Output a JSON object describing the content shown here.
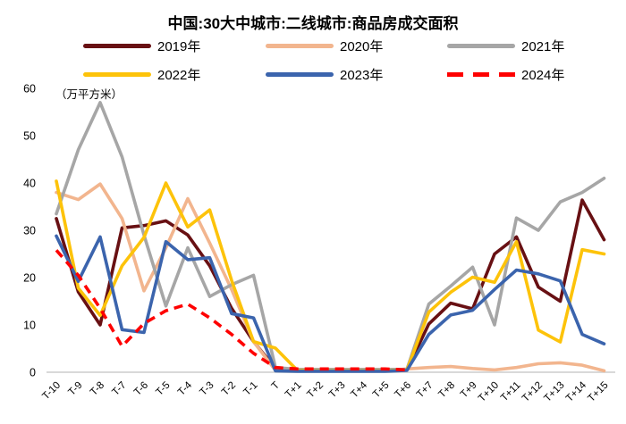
{
  "title": "中国:30大中城市:二线城市:商品房成交面积",
  "y_axis": {
    "unit_label": "（万平方米）",
    "ticks": [
      0,
      10,
      20,
      30,
      40,
      50,
      60
    ],
    "axis_line_color": "#d9d9d9"
  },
  "legend": {
    "position": "top",
    "rows": 2,
    "columns": 3
  },
  "chart_data": {
    "type": "line",
    "title": "中国:30大中城市:二线城市:商品房成交面积",
    "ylabel": "（万平方米）",
    "ylim": [
      0,
      60
    ],
    "grid": false,
    "legend_position": "top",
    "categories": [
      "T-10",
      "T-9",
      "T-8",
      "T-7",
      "T-6",
      "T-5",
      "T-4",
      "T-3",
      "T-2",
      "T-1",
      "T",
      "T+1",
      "T+2",
      "T+3",
      "T+4",
      "T+5",
      "T+6",
      "T+7",
      "T+8",
      "T+9",
      "T+10",
      "T+11",
      "T+12",
      "T+13",
      "T+14",
      "T+15"
    ],
    "series": [
      {
        "name": "2019年",
        "color": "#681013",
        "dashed": false,
        "values": [
          32.5,
          17,
          10,
          30.5,
          31,
          32,
          29,
          22.5,
          13.5,
          6.5,
          0.8,
          0.4,
          0.4,
          0.4,
          0.4,
          0.4,
          0.5,
          10.2,
          14.6,
          13.4,
          25,
          28.6,
          18,
          15,
          36.4,
          28
        ]
      },
      {
        "name": "2020年",
        "color": "#f2b58e",
        "dashed": false,
        "values": [
          38,
          36.5,
          39.8,
          32.5,
          17.2,
          26.3,
          36.7,
          27.3,
          17.5,
          6.5,
          0.4,
          0.3,
          0.3,
          0.3,
          0.3,
          0.3,
          0.7,
          1.0,
          1.2,
          0.8,
          0.5,
          1.0,
          1.8,
          2.0,
          1.5,
          0.3
        ]
      },
      {
        "name": "2021年",
        "color": "#a6a6a6",
        "dashed": false,
        "values": [
          33.5,
          47,
          57,
          45.5,
          29,
          14,
          26.3,
          16,
          18.5,
          20.5,
          1.0,
          0.6,
          0.6,
          0.6,
          0.6,
          0.6,
          0.6,
          14.4,
          18.2,
          22.2,
          10,
          32.6,
          30,
          36,
          38,
          41
        ]
      },
      {
        "name": "2022年",
        "color": "#fdc30a",
        "dashed": false,
        "values": [
          40.4,
          17.8,
          12,
          22.5,
          28.5,
          40,
          30.7,
          34.3,
          19.4,
          6.5,
          5.1,
          0.4,
          0.3,
          0.3,
          0.3,
          0.3,
          0.5,
          12.7,
          16.9,
          20.1,
          19,
          27.6,
          8.9,
          6.4,
          25.9,
          25
        ]
      },
      {
        "name": "2023年",
        "color": "#3b64ad",
        "dashed": false,
        "values": [
          28.8,
          19.2,
          28.6,
          9,
          8.4,
          27.6,
          23.8,
          24.2,
          12.4,
          11.5,
          0.3,
          0.2,
          0.2,
          0.2,
          0.2,
          0.2,
          0.4,
          8,
          12.1,
          13.1,
          17.5,
          21.6,
          20.8,
          19.3,
          8,
          6
        ]
      },
      {
        "name": "2024年",
        "color": "#fe0000",
        "dashed": true,
        "values": [
          25.8,
          20.5,
          13.5,
          5.5,
          10.3,
          13,
          14.4,
          11.5,
          8,
          4,
          1.0,
          0.7,
          0.7,
          0.7,
          0.7,
          0.7,
          0.5,
          null,
          null,
          null,
          null,
          null,
          null,
          null,
          null,
          null
        ]
      }
    ]
  }
}
